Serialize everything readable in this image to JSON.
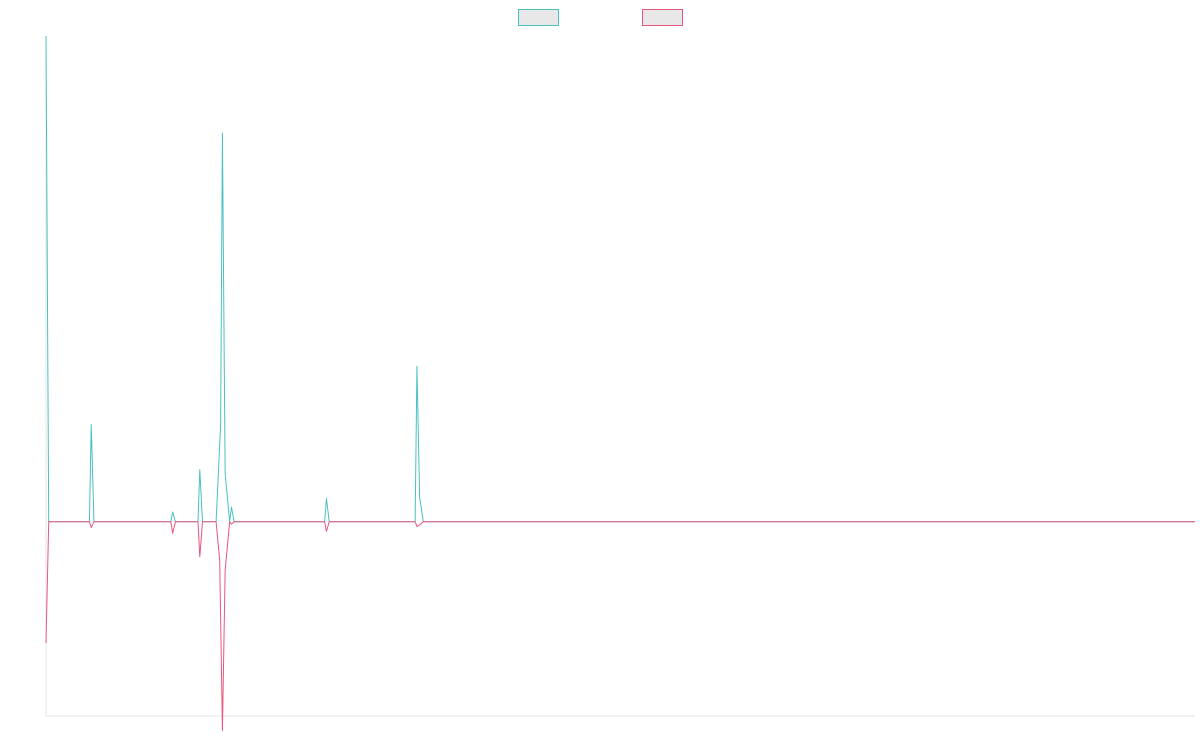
{
  "chart_data": {
    "type": "line",
    "title": "",
    "xlabel": "",
    "ylabel": "",
    "grid": false,
    "legend_position": "top-center",
    "xlim": [
      0,
      127
    ],
    "ylim": [
      -0.4,
      1.0
    ],
    "series": [
      {
        "name": "",
        "color": "#4bc0c0",
        "fill": "#e8e8e8",
        "points": [
          [
            0,
            1.0
          ],
          [
            0.3,
            0.0
          ],
          [
            4.8,
            0.0
          ],
          [
            5,
            0.2
          ],
          [
            5.3,
            0.0
          ],
          [
            13.8,
            0.0
          ],
          [
            14,
            0.02
          ],
          [
            14.3,
            0.0
          ],
          [
            16.8,
            0.0
          ],
          [
            17,
            0.107
          ],
          [
            17.3,
            0.0
          ],
          [
            18.8,
            0.0
          ],
          [
            19.3,
            0.2
          ],
          [
            19.5,
            0.8
          ],
          [
            19.8,
            0.1
          ],
          [
            20.3,
            0.0
          ],
          [
            20.5,
            0.03
          ],
          [
            20.8,
            0.0
          ],
          [
            30.8,
            0.0
          ],
          [
            31,
            0.048
          ],
          [
            31.3,
            0.0
          ],
          [
            40.8,
            0.0
          ],
          [
            41,
            0.32
          ],
          [
            41.3,
            0.05
          ],
          [
            41.7,
            0.0
          ],
          [
            127,
            0.0
          ]
        ]
      },
      {
        "name": "",
        "color": "#e8577e",
        "fill": "#e8e8e8",
        "points": [
          [
            0,
            -0.25
          ],
          [
            0.3,
            0.0
          ],
          [
            4.8,
            0.0
          ],
          [
            5,
            -0.012
          ],
          [
            5.3,
            0.0
          ],
          [
            13.8,
            0.0
          ],
          [
            14,
            -0.024
          ],
          [
            14.3,
            0.0
          ],
          [
            16.8,
            0.0
          ],
          [
            17,
            -0.072
          ],
          [
            17.3,
            0.0
          ],
          [
            18.8,
            0.0
          ],
          [
            19.2,
            -0.08
          ],
          [
            19.5,
            -0.43
          ],
          [
            19.8,
            -0.1
          ],
          [
            20.3,
            0.0
          ],
          [
            20.5,
            -0.005
          ],
          [
            20.8,
            0.0
          ],
          [
            30.8,
            0.0
          ],
          [
            31,
            -0.02
          ],
          [
            31.3,
            0.0
          ],
          [
            40.8,
            0.0
          ],
          [
            41,
            -0.01
          ],
          [
            41.4,
            -0.005
          ],
          [
            41.7,
            0.0
          ],
          [
            127,
            0.0
          ]
        ]
      }
    ]
  }
}
